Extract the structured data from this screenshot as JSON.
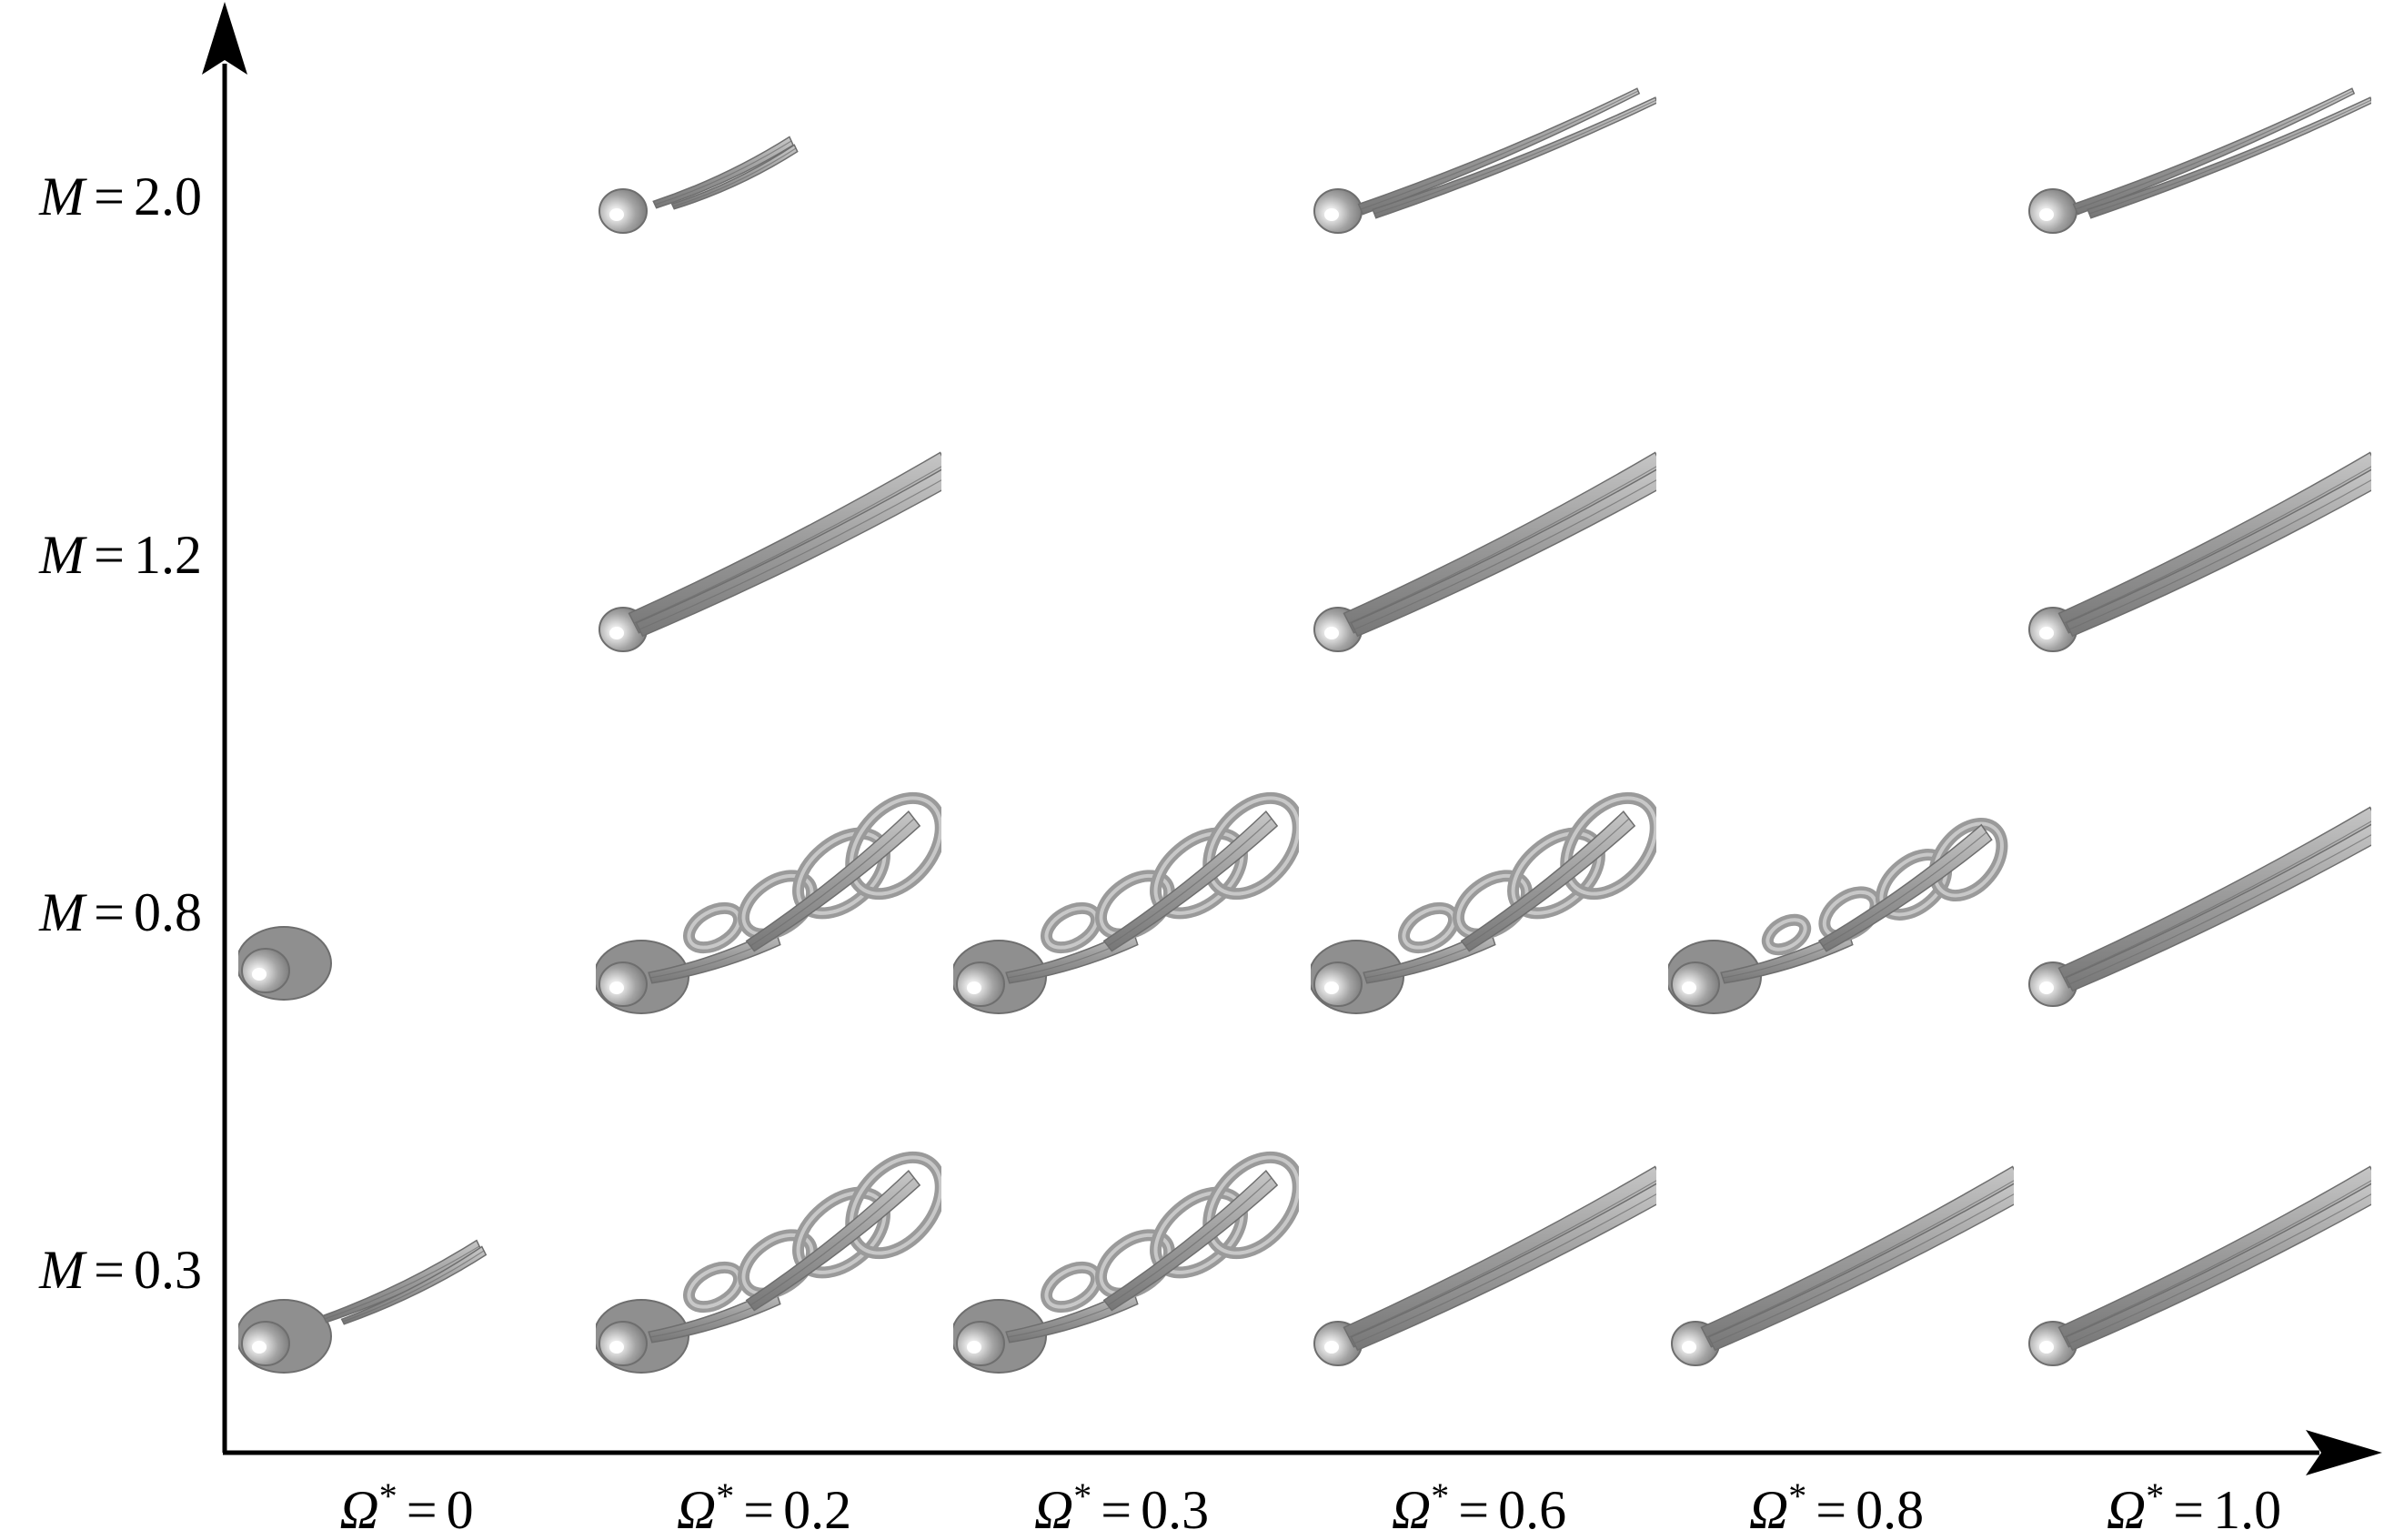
{
  "y_axis": {
    "symbol": "M",
    "labels": [
      {
        "symbol": "M",
        "eq": "=",
        "value": "2.0"
      },
      {
        "symbol": "M",
        "eq": "=",
        "value": "1.2"
      },
      {
        "symbol": "M",
        "eq": "=",
        "value": "0.8"
      },
      {
        "symbol": "M",
        "eq": "=",
        "value": "0.3"
      }
    ]
  },
  "x_axis": {
    "symbol": "Ω",
    "labels": [
      {
        "symbol": "Ω",
        "sup": "*",
        "eq": "=",
        "value": "0"
      },
      {
        "symbol": "Ω",
        "sup": "*",
        "eq": "=",
        "value": "0.2"
      },
      {
        "symbol": "Ω",
        "sup": "*",
        "eq": "=",
        "value": "0.3"
      },
      {
        "symbol": "Ω",
        "sup": "*",
        "eq": "=",
        "value": "0.6"
      },
      {
        "symbol": "Ω",
        "sup": "*",
        "eq": "=",
        "value": "0.8"
      },
      {
        "symbol": "Ω",
        "sup": "*",
        "eq": "=",
        "value": "1.0"
      }
    ]
  },
  "cells": [
    {
      "mach": "2.0",
      "omega": "0.2",
      "wake": "short-thin"
    },
    {
      "mach": "2.0",
      "omega": "0.6",
      "wake": "long-thin"
    },
    {
      "mach": "2.0",
      "omega": "1.0",
      "wake": "long-thin"
    },
    {
      "mach": "1.2",
      "omega": "0.2",
      "wake": "streamwise"
    },
    {
      "mach": "1.2",
      "omega": "0.6",
      "wake": "streamwise"
    },
    {
      "mach": "1.2",
      "omega": "1.0",
      "wake": "streamwise"
    },
    {
      "mach": "0.8",
      "omega": "0",
      "wake": "none"
    },
    {
      "mach": "0.8",
      "omega": "0.2",
      "wake": "hairpin"
    },
    {
      "mach": "0.8",
      "omega": "0.3",
      "wake": "hairpin"
    },
    {
      "mach": "0.8",
      "omega": "0.6",
      "wake": "hairpin"
    },
    {
      "mach": "0.8",
      "omega": "0.8",
      "wake": "hairpin-weak"
    },
    {
      "mach": "0.8",
      "omega": "1.0",
      "wake": "streamwise"
    },
    {
      "mach": "0.3",
      "omega": "0",
      "wake": "detached-thin"
    },
    {
      "mach": "0.3",
      "omega": "0.2",
      "wake": "hairpin"
    },
    {
      "mach": "0.3",
      "omega": "0.3",
      "wake": "hairpin"
    },
    {
      "mach": "0.3",
      "omega": "0.6",
      "wake": "streamwise"
    },
    {
      "mach": "0.3",
      "omega": "0.8",
      "wake": "streamwise"
    },
    {
      "mach": "0.3",
      "omega": "1.0",
      "wake": "streamwise"
    }
  ],
  "colors": {
    "axis": "#000000",
    "iso_fill": "#9a9a9a",
    "iso_dark": "#6e6e6e",
    "iso_light": "#c8c8c8",
    "highlight": "#ffffff"
  }
}
